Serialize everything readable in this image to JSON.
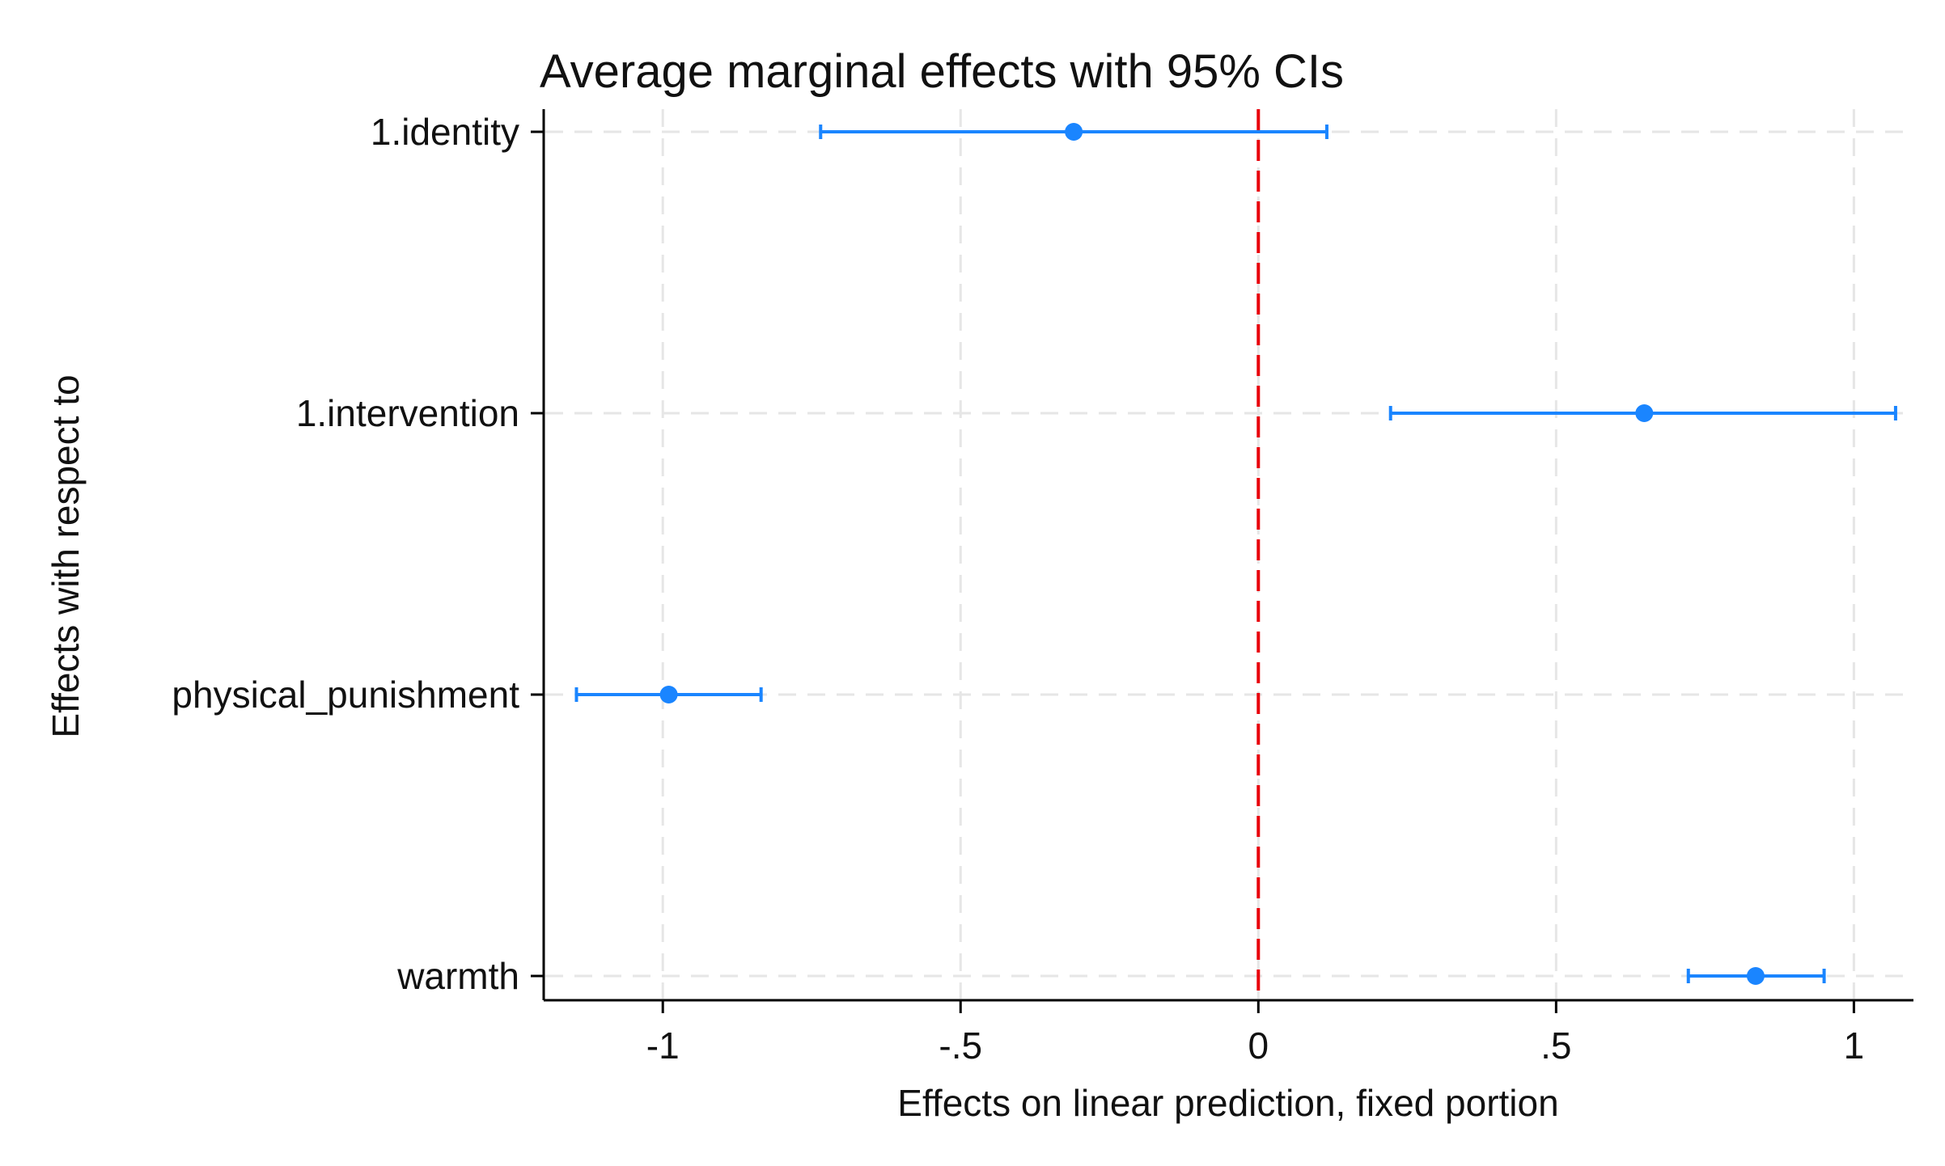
{
  "chart_data": {
    "type": "scatter",
    "title": "Average marginal effects with 95% CIs",
    "xlabel": "Effects on linear prediction, fixed portion",
    "ylabel": "Effects with respect to",
    "xlim": [
      -1.2,
      1.1
    ],
    "xticks": [
      {
        "value": -1,
        "label": "-1"
      },
      {
        "value": -0.5,
        "label": "-.5"
      },
      {
        "value": 0,
        "label": "0"
      },
      {
        "value": 0.5,
        "label": ".5"
      },
      {
        "value": 1,
        "label": "1"
      }
    ],
    "grid": true,
    "reference_line": {
      "x": 0,
      "color": "#e8000b",
      "style": "dashed"
    },
    "marker_color": "#1a85ff",
    "categories": [
      "1.identity",
      "1.intervention",
      "physical_punishment",
      "warmth"
    ],
    "estimates": [
      {
        "label": "1.identity",
        "value": -0.31,
        "ci_low": -0.735,
        "ci_high": 0.115
      },
      {
        "label": "1.intervention",
        "value": 0.648,
        "ci_low": 0.222,
        "ci_high": 1.07
      },
      {
        "label": "physical_punishment",
        "value": -0.99,
        "ci_low": -1.145,
        "ci_high": -0.835
      },
      {
        "label": "warmth",
        "value": 0.835,
        "ci_low": 0.722,
        "ci_high": 0.95
      }
    ]
  }
}
